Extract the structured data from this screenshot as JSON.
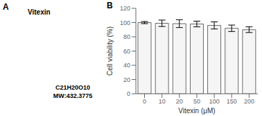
{
  "chart_data": {
    "type": "bar",
    "categories": [
      "0",
      "10",
      "20",
      "50",
      "100",
      "150",
      "200"
    ],
    "values": [
      100.0,
      99.0,
      98.5,
      98.0,
      96.0,
      92.0,
      90.0
    ],
    "errors": [
      1.5,
      4.5,
      5.5,
      4.0,
      5.0,
      4.5,
      4.0
    ],
    "xlabel": "Vitexin (μM)",
    "ylabel": "Cell viability (%)",
    "ylim": [
      0,
      120
    ],
    "yticks": [
      0,
      20,
      40,
      60,
      80,
      100,
      120
    ],
    "color": "#f5f5f5",
    "annotations": [
      "A",
      "Vitexin",
      "C21H20O10",
      "MW:432.3775",
      "B"
    ]
  }
}
